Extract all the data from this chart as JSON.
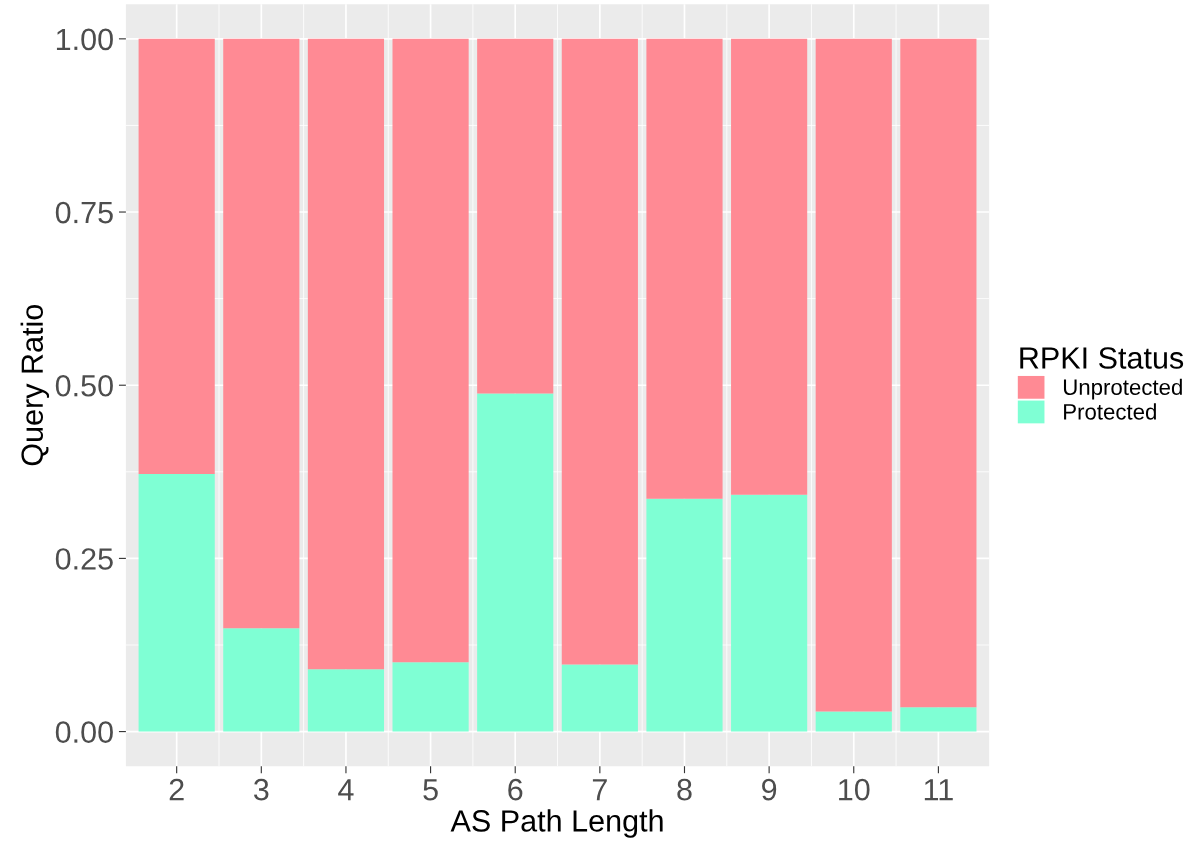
{
  "chart_data": {
    "type": "bar",
    "stacked": true,
    "xlabel": "AS Path Length",
    "ylabel": "Query Ratio",
    "legend_title": "RPKI Status",
    "categories": [
      "2",
      "3",
      "4",
      "5",
      "6",
      "7",
      "8",
      "9",
      "10",
      "11"
    ],
    "series": [
      {
        "name": "Protected",
        "color": "#7fffd4",
        "values": [
          0.372,
          0.149,
          0.09,
          0.1,
          0.488,
          0.097,
          0.336,
          0.342,
          0.029,
          0.035
        ]
      },
      {
        "name": "Unprotected",
        "color": "#ff8a94",
        "values": [
          0.628,
          0.851,
          0.91,
          0.9,
          0.512,
          0.903,
          0.664,
          0.658,
          0.971,
          0.965
        ]
      }
    ],
    "ylim": [
      -0.05,
      1.05
    ],
    "yticks": [
      {
        "value": 0,
        "label": "0.00"
      },
      {
        "value": 0.25,
        "label": "0.25"
      },
      {
        "value": 0.5,
        "label": "0.50"
      },
      {
        "value": 0.75,
        "label": "0.75"
      },
      {
        "value": 1,
        "label": "1.00"
      }
    ],
    "grid": true,
    "legend": "right"
  }
}
